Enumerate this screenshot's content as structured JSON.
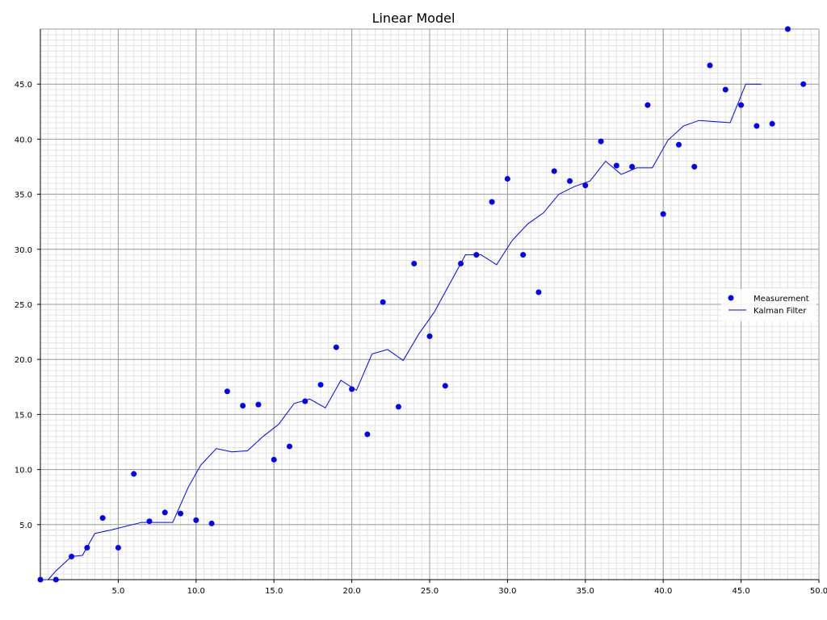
{
  "chart_data": {
    "type": "scatter",
    "title": "Linear Model",
    "xlabel": "",
    "ylabel": "",
    "xlim": [
      0,
      50
    ],
    "ylim": [
      0,
      50
    ],
    "x_ticks": [
      5,
      10,
      15,
      20,
      25,
      30,
      35,
      40,
      45,
      50
    ],
    "y_ticks": [
      5,
      10,
      15,
      20,
      25,
      30,
      35,
      40,
      45
    ],
    "x_tick_labels": [
      "5.0",
      "10.0",
      "15.0",
      "20.0",
      "25.0",
      "30.0",
      "35.0",
      "40.0",
      "45.0",
      "50.0"
    ],
    "y_tick_labels": [
      "5.0",
      "10.0",
      "15.0",
      "20.0",
      "25.0",
      "30.0",
      "35.0",
      "40.0",
      "45.0"
    ],
    "grid": true,
    "legend_position": "right",
    "series": [
      {
        "name": "Measurement",
        "style": "markers",
        "color": "#0000ff",
        "x": [
          0,
          1,
          2,
          3,
          4,
          5,
          6,
          7,
          8,
          9,
          10,
          11,
          12,
          13,
          14,
          15,
          16,
          17,
          18,
          19,
          20,
          21,
          22,
          23,
          24,
          25,
          26,
          27,
          28,
          29,
          30,
          31,
          32,
          33,
          34,
          35,
          36,
          37,
          38,
          39,
          40,
          41,
          42,
          43,
          44,
          45,
          46,
          47,
          48,
          49
        ],
        "y": [
          0,
          0,
          2.1,
          2.9,
          5.6,
          2.9,
          9.6,
          5.3,
          6.1,
          6.0,
          5.4,
          5.1,
          17.1,
          15.8,
          15.9,
          10.9,
          12.1,
          16.2,
          17.7,
          21.1,
          17.3,
          13.2,
          25.2,
          15.7,
          28.7,
          22.1,
          17.6,
          28.7,
          29.5,
          34.3,
          36.4,
          29.5,
          26.1,
          37.1,
          36.2,
          35.8,
          39.8,
          37.6,
          37.5,
          43.1,
          33.2,
          39.5,
          37.5,
          46.7,
          44.5,
          43.1,
          41.2,
          41.4,
          50.0,
          45.0
        ]
      },
      {
        "name": "Kalman Filter",
        "style": "line",
        "color": "#0000ff",
        "x": [
          0,
          0.5,
          1,
          2,
          2.7,
          3.5,
          4.5,
          6.5,
          8.5,
          9.5,
          10.3,
          11.3,
          12.3,
          13.3,
          14.3,
          15.3,
          16.3,
          17.3,
          18.3,
          19.3,
          20.3,
          21.3,
          22.3,
          23.3,
          24.3,
          25.3,
          26.3,
          27.3,
          28.3,
          29.3,
          30.3,
          31.3,
          32.3,
          33.3,
          34.3,
          35.3,
          36.3,
          37.3,
          38.3,
          39.3,
          40.3,
          41.3,
          42.3,
          43.3,
          44.3,
          45.3,
          46.3
        ],
        "y": [
          0,
          0,
          0.8,
          2.1,
          2.2,
          4.2,
          4.5,
          5.2,
          5.2,
          8.4,
          10.4,
          11.9,
          11.6,
          11.7,
          13.0,
          14.1,
          16.0,
          16.4,
          15.6,
          18.1,
          17.2,
          20.5,
          20.9,
          19.9,
          22.3,
          24.3,
          26.9,
          29.5,
          29.5,
          28.6,
          30.8,
          32.3,
          33.3,
          35.0,
          35.7,
          36.2,
          38.0,
          36.8,
          37.4,
          37.4,
          39.9,
          41.2,
          41.7,
          41.6,
          41.5,
          45.0,
          45.0
        ]
      }
    ]
  }
}
